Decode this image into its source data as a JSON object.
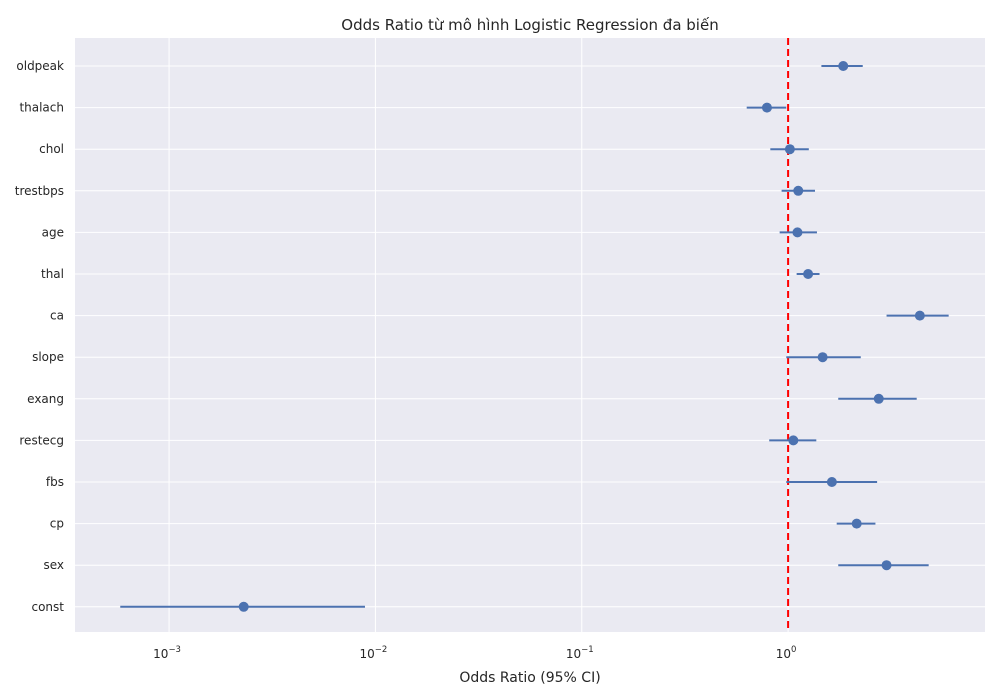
{
  "chart_data": {
    "type": "scatter",
    "title": "Odds Ratio từ mô hình Logistic Regression đa biến",
    "xlabel": "Odds Ratio (95% CI)",
    "ylabel": "",
    "x_scale": "log",
    "xlim": [
      0.00035,
      9
    ],
    "x_ticks": [
      {
        "value": 0.001,
        "base": "10",
        "exp": "−3"
      },
      {
        "value": 0.01,
        "base": "10",
        "exp": "−2"
      },
      {
        "value": 0.1,
        "base": "10",
        "exp": "−1"
      },
      {
        "value": 1,
        "base": "10",
        "exp": "0"
      }
    ],
    "reference_line": {
      "x": 1,
      "color": "#ff0000",
      "style": "dashed"
    },
    "grid": true,
    "colors": {
      "marker": "#4c72b0",
      "background": "#eaeaf2",
      "grid": "#ffffff"
    },
    "variables": [
      "oldpeak",
      "thalach",
      "chol",
      "trestbps",
      "age",
      "thal",
      "ca",
      "slope",
      "exang",
      "restecg",
      "fbs",
      "cp",
      "sex",
      "const"
    ],
    "odds_ratio": [
      1.85,
      0.79,
      1.02,
      1.12,
      1.11,
      1.25,
      4.35,
      1.47,
      2.75,
      1.06,
      1.63,
      2.15,
      3.0,
      0.0023
    ],
    "ci_lower": [
      1.45,
      0.63,
      0.82,
      0.93,
      0.91,
      1.1,
      3.0,
      0.98,
      1.75,
      0.81,
      0.98,
      1.72,
      1.75,
      0.00058
    ],
    "ci_upper": [
      2.3,
      0.98,
      1.26,
      1.35,
      1.38,
      1.42,
      6.0,
      2.25,
      4.2,
      1.37,
      2.7,
      2.65,
      4.8,
      0.0089
    ]
  }
}
